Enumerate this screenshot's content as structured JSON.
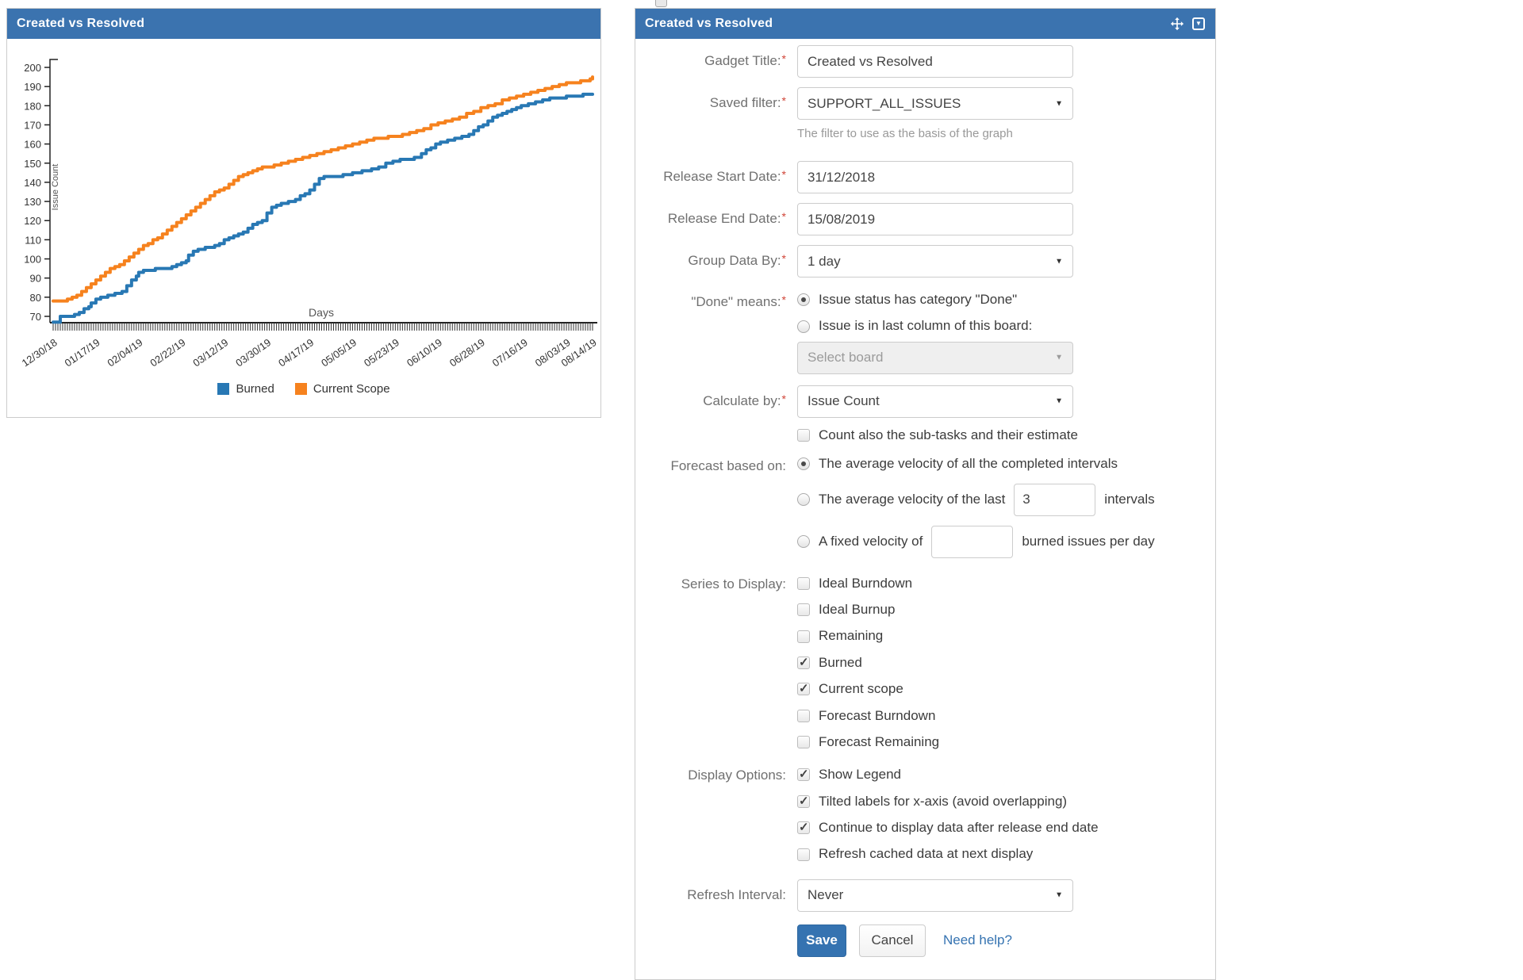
{
  "left_panel": {
    "title": "Created vs Resolved"
  },
  "chart_data": {
    "type": "line",
    "step": true,
    "title": "Created vs Resolved",
    "xlabel": "Days",
    "ylabel": "Issue Count",
    "ylim": [
      66,
      204
    ],
    "yticks": [
      70,
      80,
      90,
      100,
      110,
      120,
      130,
      140,
      150,
      160,
      170,
      180,
      190,
      200
    ],
    "total_days": 227,
    "grid": false,
    "tilted_labels": true,
    "legend_position": "bottom",
    "x_tick_labels": [
      {
        "day": 0,
        "label": "12/30/18"
      },
      {
        "day": 18,
        "label": "01/17/19"
      },
      {
        "day": 36,
        "label": "02/04/19"
      },
      {
        "day": 54,
        "label": "02/22/19"
      },
      {
        "day": 72,
        "label": "03/12/19"
      },
      {
        "day": 90,
        "label": "03/30/19"
      },
      {
        "day": 108,
        "label": "04/17/19"
      },
      {
        "day": 126,
        "label": "05/05/19"
      },
      {
        "day": 144,
        "label": "05/23/19"
      },
      {
        "day": 162,
        "label": "06/10/19"
      },
      {
        "day": 180,
        "label": "06/28/19"
      },
      {
        "day": 198,
        "label": "07/16/19"
      },
      {
        "day": 216,
        "label": "08/03/19"
      },
      {
        "day": 227,
        "label": "08/14/19"
      }
    ],
    "legend": [
      {
        "name": "Burned",
        "color": "#2878b4"
      },
      {
        "name": "Current Scope",
        "color": "#f6821e"
      }
    ],
    "series": [
      {
        "name": "Burned",
        "color": "#2878b4",
        "points": [
          [
            0,
            67
          ],
          [
            2,
            67
          ],
          [
            3,
            70
          ],
          [
            8,
            70
          ],
          [
            9,
            71
          ],
          [
            11,
            72
          ],
          [
            13,
            74
          ],
          [
            15,
            75
          ],
          [
            16,
            77
          ],
          [
            18,
            79
          ],
          [
            20,
            80
          ],
          [
            23,
            81
          ],
          [
            26,
            82
          ],
          [
            29,
            83
          ],
          [
            31,
            86
          ],
          [
            33,
            89
          ],
          [
            35,
            91
          ],
          [
            36,
            93
          ],
          [
            38,
            94
          ],
          [
            41,
            94
          ],
          [
            43,
            95
          ],
          [
            47,
            95
          ],
          [
            50,
            96
          ],
          [
            52,
            97
          ],
          [
            54,
            98
          ],
          [
            56,
            99
          ],
          [
            57,
            102
          ],
          [
            59,
            104
          ],
          [
            61,
            105
          ],
          [
            64,
            106
          ],
          [
            68,
            107
          ],
          [
            70,
            108
          ],
          [
            72,
            110
          ],
          [
            74,
            111
          ],
          [
            76,
            112
          ],
          [
            78,
            113
          ],
          [
            80,
            114
          ],
          [
            82,
            116
          ],
          [
            84,
            118
          ],
          [
            86,
            119
          ],
          [
            88,
            120
          ],
          [
            90,
            124
          ],
          [
            92,
            127
          ],
          [
            94,
            128
          ],
          [
            96,
            129
          ],
          [
            99,
            130
          ],
          [
            102,
            131
          ],
          [
            104,
            133
          ],
          [
            106,
            134
          ],
          [
            108,
            136
          ],
          [
            110,
            139
          ],
          [
            112,
            142
          ],
          [
            114,
            143
          ],
          [
            118,
            143
          ],
          [
            122,
            144
          ],
          [
            126,
            145
          ],
          [
            130,
            146
          ],
          [
            134,
            147
          ],
          [
            137,
            148
          ],
          [
            140,
            150
          ],
          [
            143,
            151
          ],
          [
            146,
            152
          ],
          [
            152,
            153
          ],
          [
            155,
            155
          ],
          [
            157,
            157
          ],
          [
            159,
            158
          ],
          [
            161,
            160
          ],
          [
            163,
            161
          ],
          [
            166,
            162
          ],
          [
            169,
            163
          ],
          [
            172,
            164
          ],
          [
            175,
            165
          ],
          [
            177,
            167
          ],
          [
            179,
            169
          ],
          [
            181,
            170
          ],
          [
            183,
            172
          ],
          [
            185,
            174
          ],
          [
            187,
            175
          ],
          [
            189,
            176
          ],
          [
            191,
            177
          ],
          [
            193,
            178
          ],
          [
            195,
            179
          ],
          [
            197,
            180
          ],
          [
            200,
            181
          ],
          [
            203,
            182
          ],
          [
            206,
            183
          ],
          [
            209,
            184
          ],
          [
            213,
            184
          ],
          [
            216,
            185
          ],
          [
            220,
            185
          ],
          [
            223,
            186
          ],
          [
            227,
            186
          ]
        ]
      },
      {
        "name": "Current Scope",
        "color": "#f6821e",
        "points": [
          [
            0,
            78
          ],
          [
            5,
            78
          ],
          [
            6,
            79
          ],
          [
            8,
            80
          ],
          [
            10,
            81
          ],
          [
            12,
            83
          ],
          [
            14,
            85
          ],
          [
            16,
            87
          ],
          [
            18,
            89
          ],
          [
            20,
            91
          ],
          [
            22,
            93
          ],
          [
            24,
            95
          ],
          [
            26,
            96
          ],
          [
            28,
            97
          ],
          [
            30,
            99
          ],
          [
            32,
            101
          ],
          [
            34,
            103
          ],
          [
            36,
            105
          ],
          [
            38,
            107
          ],
          [
            40,
            108
          ],
          [
            42,
            110
          ],
          [
            44,
            111
          ],
          [
            46,
            113
          ],
          [
            48,
            115
          ],
          [
            50,
            117
          ],
          [
            52,
            119
          ],
          [
            54,
            121
          ],
          [
            56,
            123
          ],
          [
            58,
            125
          ],
          [
            60,
            127
          ],
          [
            62,
            129
          ],
          [
            64,
            131
          ],
          [
            66,
            133
          ],
          [
            68,
            135
          ],
          [
            70,
            136
          ],
          [
            72,
            137
          ],
          [
            74,
            139
          ],
          [
            76,
            141
          ],
          [
            78,
            143
          ],
          [
            80,
            144
          ],
          [
            82,
            145
          ],
          [
            84,
            146
          ],
          [
            86,
            147
          ],
          [
            88,
            148
          ],
          [
            90,
            148
          ],
          [
            93,
            149
          ],
          [
            96,
            150
          ],
          [
            99,
            151
          ],
          [
            102,
            152
          ],
          [
            105,
            153
          ],
          [
            108,
            154
          ],
          [
            111,
            155
          ],
          [
            114,
            156
          ],
          [
            117,
            157
          ],
          [
            120,
            158
          ],
          [
            123,
            159
          ],
          [
            126,
            160
          ],
          [
            129,
            161
          ],
          [
            132,
            162
          ],
          [
            135,
            163
          ],
          [
            138,
            163
          ],
          [
            141,
            164
          ],
          [
            144,
            164
          ],
          [
            147,
            165
          ],
          [
            150,
            166
          ],
          [
            153,
            167
          ],
          [
            156,
            168
          ],
          [
            159,
            170
          ],
          [
            162,
            171
          ],
          [
            165,
            172
          ],
          [
            168,
            173
          ],
          [
            171,
            174
          ],
          [
            174,
            176
          ],
          [
            177,
            177
          ],
          [
            180,
            179
          ],
          [
            183,
            180
          ],
          [
            186,
            181
          ],
          [
            189,
            183
          ],
          [
            192,
            184
          ],
          [
            195,
            185
          ],
          [
            198,
            186
          ],
          [
            201,
            187
          ],
          [
            204,
            188
          ],
          [
            207,
            189
          ],
          [
            210,
            190
          ],
          [
            213,
            191
          ],
          [
            216,
            192
          ],
          [
            219,
            192
          ],
          [
            222,
            193
          ],
          [
            224,
            193
          ],
          [
            226,
            194
          ],
          [
            227,
            195
          ]
        ]
      }
    ]
  },
  "config": {
    "title": "Created vs Resolved",
    "gadget_title": {
      "label": "Gadget Title:",
      "required": true,
      "value": "Created vs Resolved"
    },
    "saved_filter": {
      "label": "Saved filter:",
      "required": true,
      "value": "SUPPORT_ALL_ISSUES",
      "help": "The filter to use as the basis of the graph"
    },
    "release_start_date": {
      "label": "Release Start Date:",
      "required": true,
      "value": "31/12/2018"
    },
    "release_end_date": {
      "label": "Release End Date:",
      "required": true,
      "value": "15/08/2019"
    },
    "group_data_by": {
      "label": "Group Data By:",
      "required": true,
      "value": "1 day"
    },
    "done_means": {
      "label": "\"Done\" means:",
      "required": true,
      "option_category": {
        "label": "Issue status has category \"Done\"",
        "selected": true
      },
      "option_board": {
        "label": "Issue is in last column of this board:",
        "selected": false
      },
      "board_select": {
        "placeholder": "Select board",
        "disabled": true
      }
    },
    "calculate_by": {
      "label": "Calculate by:",
      "required": true,
      "value": "Issue Count"
    },
    "count_subtasks": {
      "label": "Count also the sub-tasks and their estimate",
      "checked": false
    },
    "forecast": {
      "label": "Forecast based on:",
      "option_all": {
        "label": "The average velocity of all the completed intervals",
        "selected": true
      },
      "option_last": {
        "prefix": "The average velocity of the last",
        "value": "3",
        "suffix": "intervals",
        "selected": false
      },
      "option_fixed": {
        "prefix": "A fixed velocity of",
        "value": "",
        "suffix": "burned issues per day",
        "selected": false
      }
    },
    "series_to_display": {
      "label": "Series to Display:",
      "items": [
        {
          "label": "Ideal Burndown",
          "checked": false
        },
        {
          "label": "Ideal Burnup",
          "checked": false
        },
        {
          "label": "Remaining",
          "checked": false
        },
        {
          "label": "Burned",
          "checked": true
        },
        {
          "label": "Current scope",
          "checked": true
        },
        {
          "label": "Forecast Burndown",
          "checked": false
        },
        {
          "label": "Forecast Remaining",
          "checked": false
        }
      ]
    },
    "display_options": {
      "label": "Display Options:",
      "items": [
        {
          "label": "Show Legend",
          "checked": true
        },
        {
          "label": "Tilted labels for x-axis (avoid overlapping)",
          "checked": true
        },
        {
          "label": "Continue to display data after release end date",
          "checked": true
        },
        {
          "label": "Refresh cached data at next display",
          "checked": false
        }
      ]
    },
    "refresh_interval": {
      "label": "Refresh Interval:",
      "value": "Never"
    },
    "actions": {
      "save": "Save",
      "cancel": "Cancel",
      "help": "Need help?"
    }
  }
}
